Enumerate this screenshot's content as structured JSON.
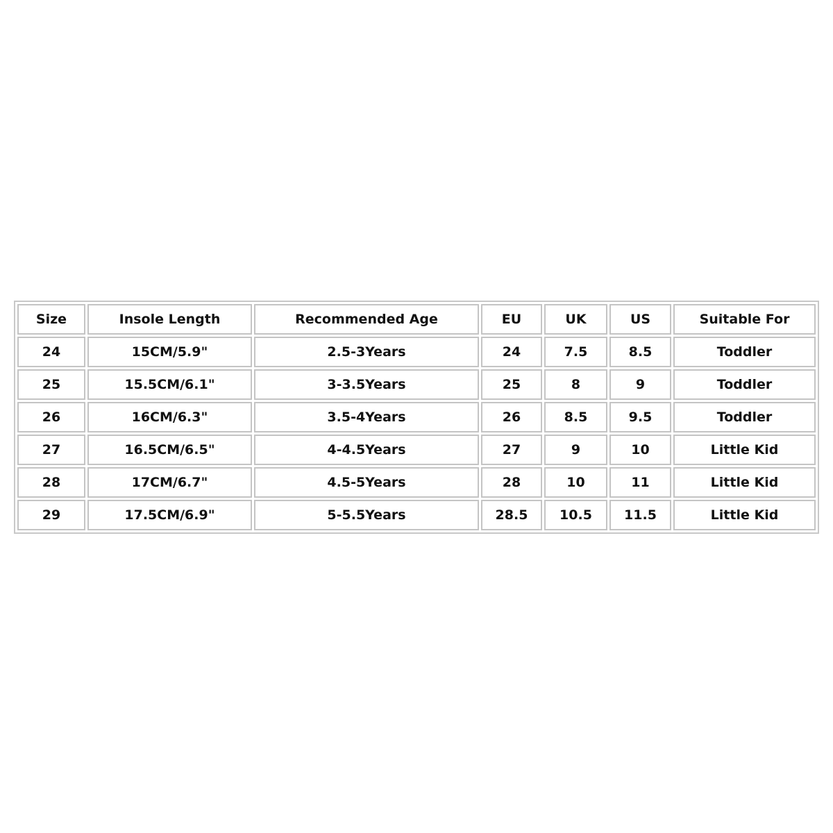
{
  "table": {
    "headers": [
      "Size",
      "Insole Length",
      "Recommended Age",
      "EU",
      "UK",
      "US",
      "Suitable For"
    ],
    "rows": [
      [
        "24",
        "15CM/5.9\"",
        "2.5-3Years",
        "24",
        "7.5",
        "8.5",
        "Toddler"
      ],
      [
        "25",
        "15.5CM/6.1\"",
        "3-3.5Years",
        "25",
        "8",
        "9",
        "Toddler"
      ],
      [
        "26",
        "16CM/6.3\"",
        "3.5-4Years",
        "26",
        "8.5",
        "9.5",
        "Toddler"
      ],
      [
        "27",
        "16.5CM/6.5\"",
        "4-4.5Years",
        "27",
        "9",
        "10",
        "Little Kid"
      ],
      [
        "28",
        "17CM/6.7\"",
        "4.5-5Years",
        "28",
        "10",
        "11",
        "Little Kid"
      ],
      [
        "29",
        "17.5CM/6.9\"",
        "5-5.5Years",
        "28.5",
        "10.5",
        "11.5",
        "Little Kid"
      ]
    ]
  }
}
